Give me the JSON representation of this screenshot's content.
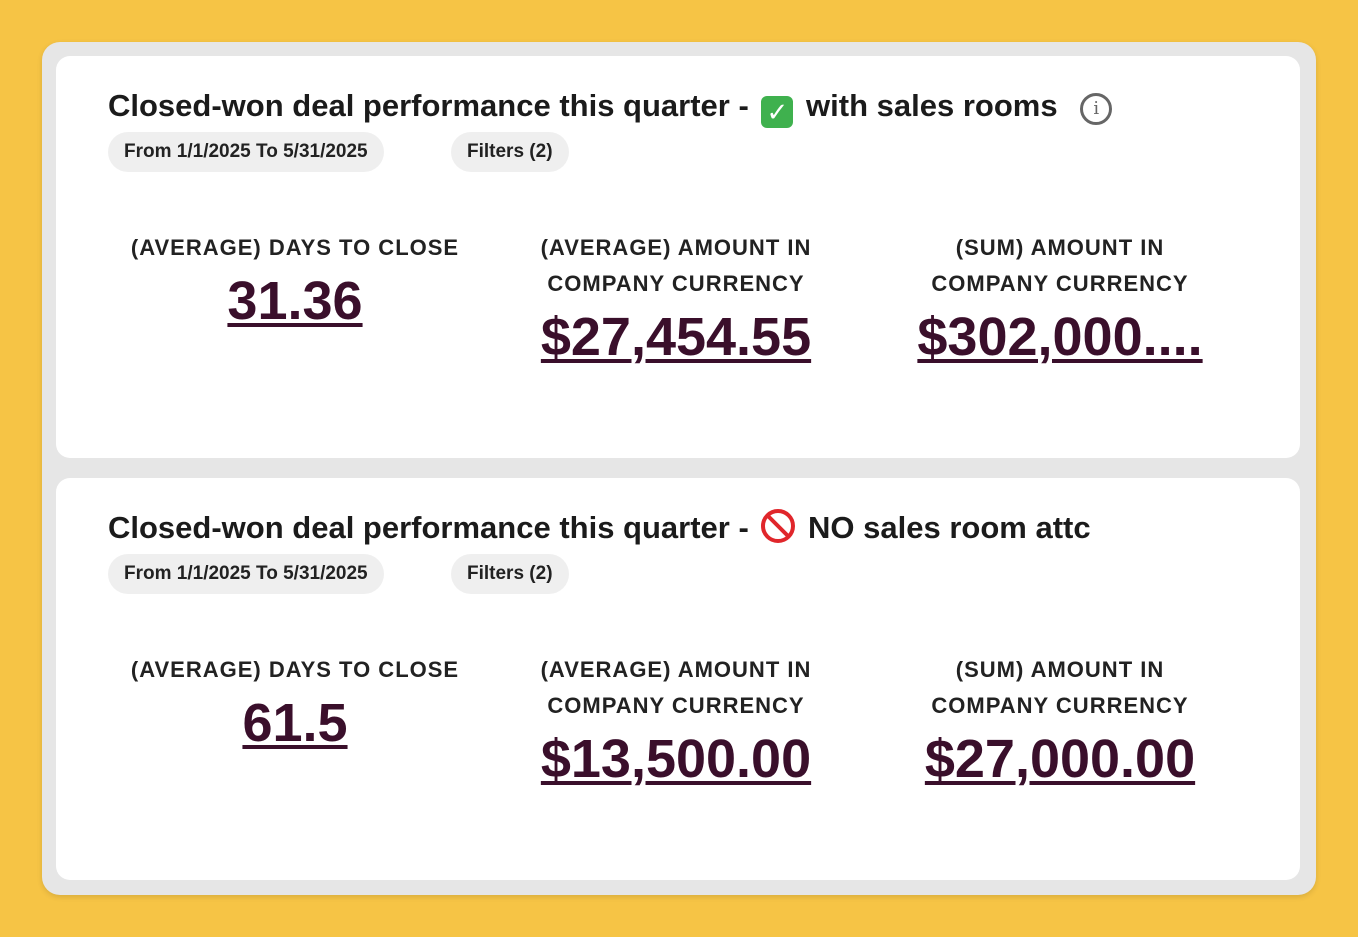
{
  "cards": [
    {
      "title_prefix": "Closed-won deal performance this quarter -",
      "title_icon": "check-mark-emoji",
      "title_suffix": "with sales rooms",
      "show_info": true,
      "date_range": "From 1/1/2025 To 5/31/2025",
      "filters": "Filters (2)",
      "metrics": [
        {
          "label_l1": "(AVERAGE) DAYS TO CLOSE",
          "label_l2": "",
          "value": "31.36"
        },
        {
          "label_l1": "(AVERAGE) AMOUNT IN",
          "label_l2": "COMPANY CURRENCY",
          "value": "$27,454.55"
        },
        {
          "label_l1": "(SUM) AMOUNT IN",
          "label_l2": "COMPANY CURRENCY",
          "value": "$302,000...."
        }
      ]
    },
    {
      "title_prefix": "Closed-won deal performance this quarter -",
      "title_icon": "prohibited-emoji",
      "title_suffix": "NO sales room attc",
      "show_info": false,
      "date_range": "From 1/1/2025 To 5/31/2025",
      "filters": "Filters (2)",
      "metrics": [
        {
          "label_l1": "(AVERAGE) DAYS TO CLOSE",
          "label_l2": "",
          "value": "61.5"
        },
        {
          "label_l1": "(AVERAGE) AMOUNT IN",
          "label_l2": "COMPANY CURRENCY",
          "value": "$13,500.00"
        },
        {
          "label_l1": "(SUM) AMOUNT IN",
          "label_l2": "COMPANY CURRENCY",
          "value": "$27,000.00"
        }
      ]
    }
  ],
  "colors": {
    "background": "#F6C445",
    "panel": "#E6E6E6",
    "card": "#FFFFFF",
    "value_text": "#3A0F2B",
    "check_green": "#3FB14E",
    "prohibited_red": "#E0262B"
  }
}
